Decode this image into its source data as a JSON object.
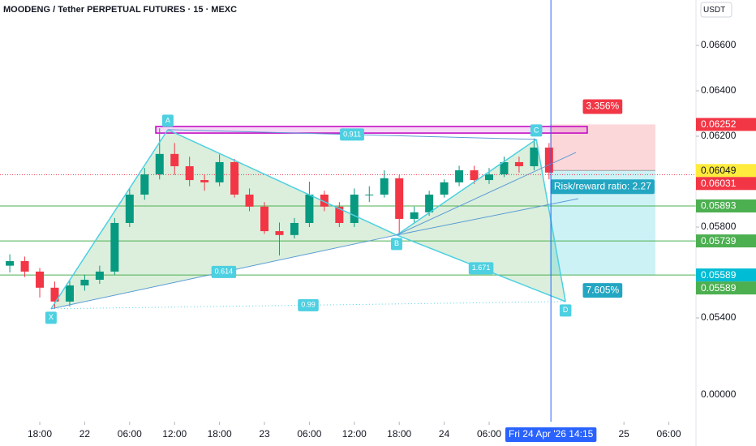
{
  "chart_data": {
    "type": "candlestick",
    "title": "MOODENG / Tether PERPETUAL FUTURES · 15 · MEXC",
    "currency_label": "USDT",
    "axis_extra_label": "0.00000",
    "x": [
      -4,
      -2,
      0,
      2,
      4,
      6,
      8,
      10,
      12,
      14,
      16,
      18,
      20,
      22,
      24,
      26,
      28,
      30,
      32,
      34,
      36,
      38,
      40,
      42,
      44,
      46,
      48,
      50,
      52,
      54,
      56,
      58,
      60,
      62,
      64,
      66,
      68
    ],
    "open": [
      0.0563,
      0.0565,
      0.05604,
      0.05533,
      0.05472,
      0.05543,
      0.05568,
      0.05604,
      0.05818,
      0.05943,
      0.06032,
      0.06122,
      0.06068,
      0.06007,
      0.05997,
      0.06086,
      0.05943,
      0.0589,
      0.05782,
      0.05765,
      0.05818,
      0.05943,
      0.0589,
      0.05818,
      0.05943,
      0.05943,
      0.06015,
      0.05836,
      0.05865,
      0.05943,
      0.05997,
      0.0605,
      0.06007,
      0.06032,
      0.06086,
      0.06068,
      0.0615
    ],
    "high": [
      0.0568,
      0.0567,
      0.0562,
      0.0556,
      0.0557,
      0.0559,
      0.0563,
      0.0584,
      0.0597,
      0.0606,
      0.06235,
      0.0617,
      0.0611,
      0.0603,
      0.0612,
      0.061,
      0.0597,
      0.0591,
      0.0582,
      0.0584,
      0.06,
      0.0596,
      0.0591,
      0.0597,
      0.0598,
      0.0605,
      0.0603,
      0.0589,
      0.0596,
      0.0601,
      0.0607,
      0.0607,
      0.0606,
      0.0611,
      0.0611,
      0.0619,
      0.0617
    ],
    "low": [
      0.056,
      0.0558,
      0.0549,
      0.0544,
      0.0545,
      0.0552,
      0.0555,
      0.0559,
      0.058,
      0.0592,
      0.0601,
      0.0603,
      0.0598,
      0.0596,
      0.0598,
      0.0593,
      0.0587,
      0.0577,
      0.05675,
      0.0575,
      0.058,
      0.0587,
      0.058,
      0.058,
      0.0591,
      0.0593,
      0.05765,
      0.0582,
      0.0585,
      0.0593,
      0.0598,
      0.0599,
      0.0599,
      0.0602,
      0.0604,
      0.0605,
      0.0601
    ],
    "close": [
      0.0565,
      0.05604,
      0.05533,
      0.05472,
      0.05543,
      0.05568,
      0.05604,
      0.05818,
      0.05943,
      0.06032,
      0.06122,
      0.06068,
      0.06007,
      0.05997,
      0.06086,
      0.05943,
      0.0589,
      0.05782,
      0.05765,
      0.05818,
      0.05943,
      0.0589,
      0.05818,
      0.05943,
      0.05943,
      0.06015,
      0.05836,
      0.05865,
      0.05943,
      0.05997,
      0.0605,
      0.06007,
      0.06032,
      0.06086,
      0.06068,
      0.0615,
      0.0604
    ],
    "up_color": "#089981",
    "down_color": "#f23645",
    "xlim": [
      -5.31,
      87.62
    ],
    "ylim": [
      0.04943,
      0.068
    ],
    "xticks": [
      {
        "value": 0,
        "label": "18:00"
      },
      {
        "value": 6,
        "label": "22"
      },
      {
        "value": 12,
        "label": "06:00"
      },
      {
        "value": 18,
        "label": "12:00"
      },
      {
        "value": 24,
        "label": "18:00"
      },
      {
        "value": 30,
        "label": "23"
      },
      {
        "value": 36,
        "label": "06:00"
      },
      {
        "value": 42,
        "label": "12:00"
      },
      {
        "value": 48,
        "label": "18:00"
      },
      {
        "value": 54,
        "label": "24"
      },
      {
        "value": 60,
        "label": "06:00"
      },
      {
        "value": 78,
        "label": "25"
      },
      {
        "value": 84,
        "label": "06:00"
      }
    ],
    "yticks": [
      {
        "value": 0.066,
        "label": "0.06600"
      },
      {
        "value": 0.064,
        "label": "0.06400"
      },
      {
        "value": 0.062,
        "label": "0.06200"
      },
      {
        "value": 0.058,
        "label": "0.05800"
      },
      {
        "value": 0.054,
        "label": "0.05400"
      }
    ],
    "crosshair": {
      "x": 68.25,
      "label": "Fri 24 Apr '26  14:15"
    },
    "pattern": {
      "color": "#4dd0e1",
      "points": [
        {
          "label": "X",
          "x": 1.5,
          "y": 0.0544
        },
        {
          "label": "A",
          "x": 17.1,
          "y": 0.06229
        },
        {
          "label": "B",
          "x": 47.65,
          "y": 0.05765
        },
        {
          "label": "C",
          "x": 66.3,
          "y": 0.06186
        },
        {
          "label": "D",
          "x": 70.2,
          "y": 0.05472
        }
      ],
      "ratios": [
        "0.614",
        "0.911",
        "1.671",
        "0.99"
      ],
      "fan_ends": [
        {
          "x": 71.6,
          "y": 0.06129
        },
        {
          "x": 71.9,
          "y": 0.05925
        }
      ]
    },
    "zone": {
      "x0": 15.49,
      "x1": 73.1,
      "y0": 0.06243,
      "y1": 0.06214,
      "color": "#c000c0"
    },
    "levels": [
      {
        "value": 0.05893,
        "color": "#4caf50"
      },
      {
        "value": 0.05739,
        "color": "#4caf50"
      },
      {
        "value": 0.05589,
        "color": "#4caf50"
      }
    ],
    "position": {
      "x_start": 68.1,
      "x_end": 82.2,
      "entry": 0.06049,
      "stop": 0.06252,
      "target": 0.05589,
      "stop_pct_label": "3.356%",
      "target_pct_label": "7.605%",
      "ratio_label": "Risk/reward ratio: 2.27"
    },
    "last_price": 0.06031,
    "price_tags": [
      {
        "value": 0.06252,
        "color": "#f23645"
      },
      {
        "value": 0.06049,
        "color": "#ffeb3b"
      },
      {
        "value": 0.06031,
        "color": "#f23645"
      },
      {
        "value": 0.05893,
        "color": "#4caf50"
      },
      {
        "value": 0.05739,
        "color": "#4caf50"
      },
      {
        "value": 0.05589,
        "color": "#00bcd4"
      },
      {
        "value": 0.05589,
        "color": "#4caf50"
      }
    ]
  }
}
